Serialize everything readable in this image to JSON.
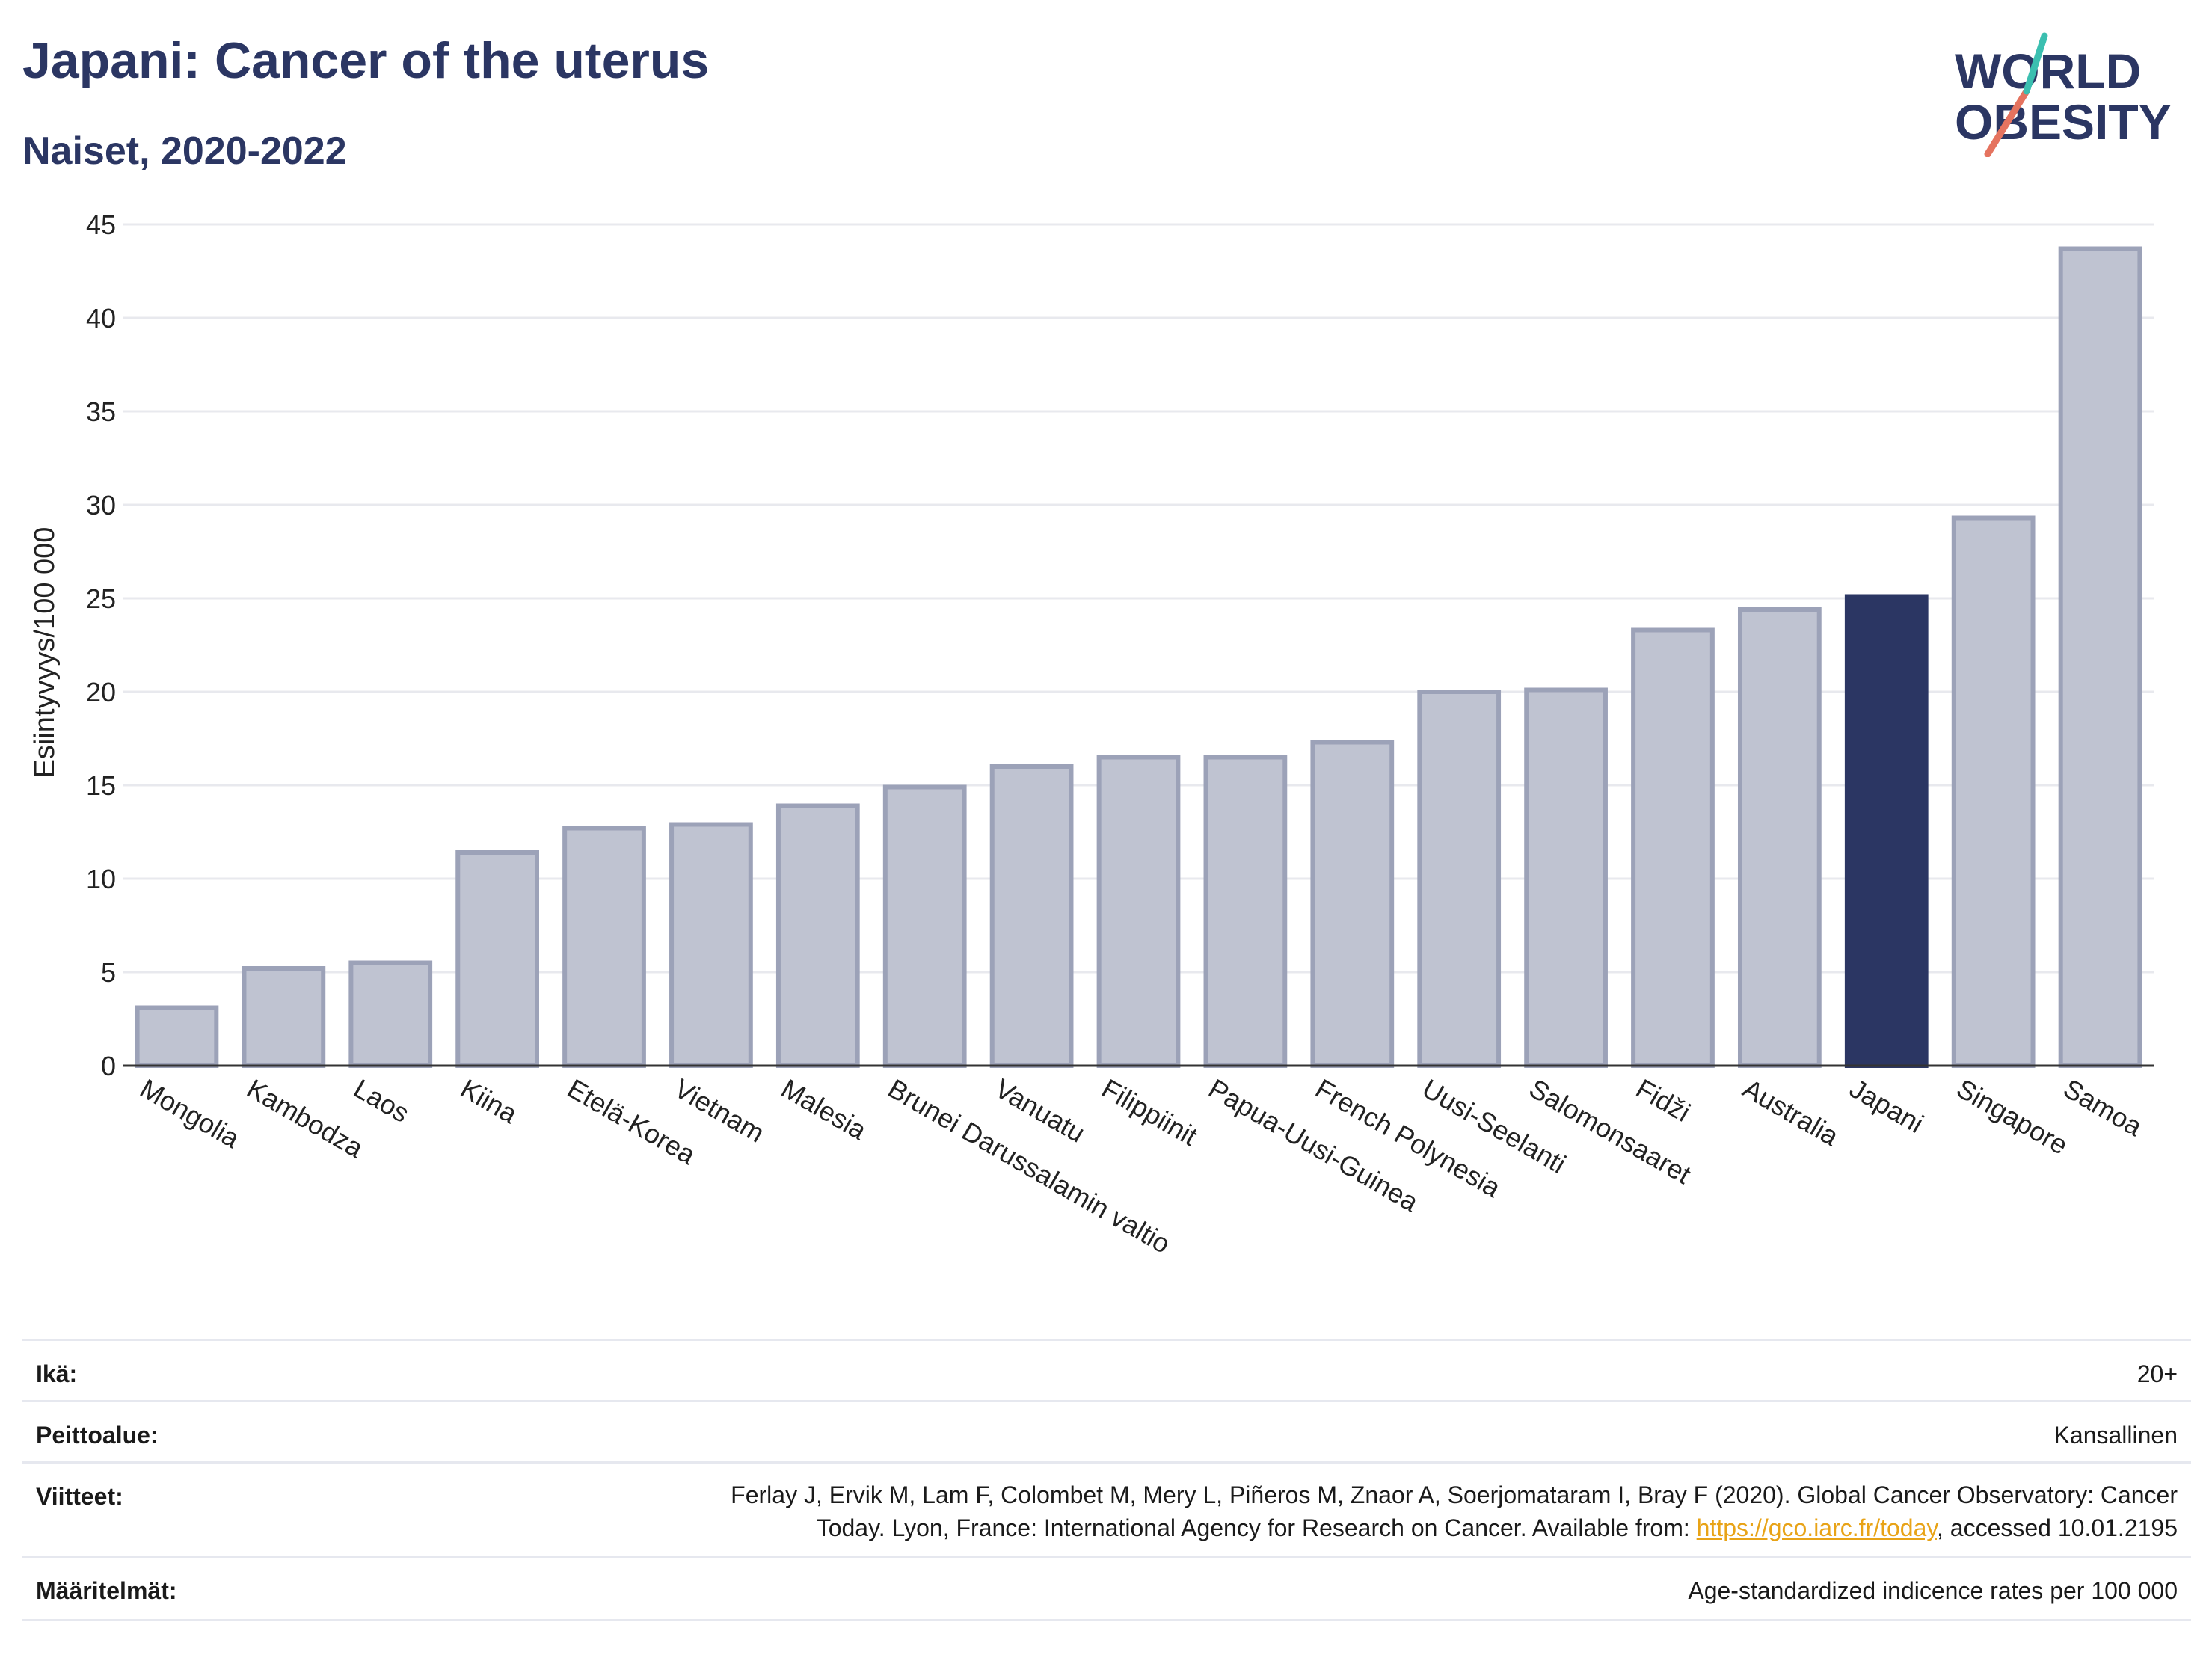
{
  "header": {
    "title": "Japani: Cancer of the uterus",
    "subtitle": "Naiset, 2020-2022"
  },
  "logo": {
    "line1": "WORLD",
    "line2": "OBESITY"
  },
  "chart_data": {
    "type": "bar",
    "title": "",
    "xlabel": "",
    "ylabel": "Esiintyvyys/100 000",
    "ylim": [
      0,
      45
    ],
    "yticks": [
      0,
      5,
      10,
      15,
      20,
      25,
      30,
      35,
      40,
      45
    ],
    "grid": true,
    "categories": [
      "Mongolia",
      "Kambodza",
      "Laos",
      "Kiina",
      "Etelä-Korea",
      "Vietnam",
      "Malesia",
      "Brunei Darussalamin valtio",
      "Vanuatu",
      "Filippiinit",
      "Papua-Uusi-Guinea",
      "French Polynesia",
      "Uusi-Seelanti",
      "Salomonsaaret",
      "Fidži",
      "Australia",
      "Japani",
      "Singapore",
      "Samoa"
    ],
    "values": [
      3.1,
      5.2,
      5.5,
      11.4,
      12.7,
      12.9,
      13.9,
      14.9,
      16.0,
      16.5,
      16.5,
      17.3,
      20.0,
      20.1,
      23.3,
      24.4,
      25.1,
      29.3,
      43.7
    ],
    "highlight": "Japani",
    "colors": {
      "bar": "#bfc3d1",
      "bar_border": "#9ca2b8",
      "highlight": "#2b3663",
      "axis": "#333333",
      "grid": "#e8e9ee"
    }
  },
  "meta": {
    "age": {
      "label": "Ikä:",
      "value": "20+"
    },
    "coverage": {
      "label": "Peittoalue:",
      "value": "Kansallinen"
    },
    "references": {
      "label": "Viitteet:",
      "line1": "Ferlay J, Ervik M, Lam F, Colombet M, Mery L, Piñeros M, Znaor A, Soerjomataram I, Bray F (2020). Global Cancer Observatory: Cancer",
      "line2_before": "Today. Lyon, France: International Agency for Research on Cancer. Available from: ",
      "link": "https://gco.iarc.fr/today",
      "line2_after": ", accessed 10.01.2195"
    },
    "definitions": {
      "label": "Määritelmät:",
      "value": "Age-standardized indicence rates per 100 000"
    }
  }
}
